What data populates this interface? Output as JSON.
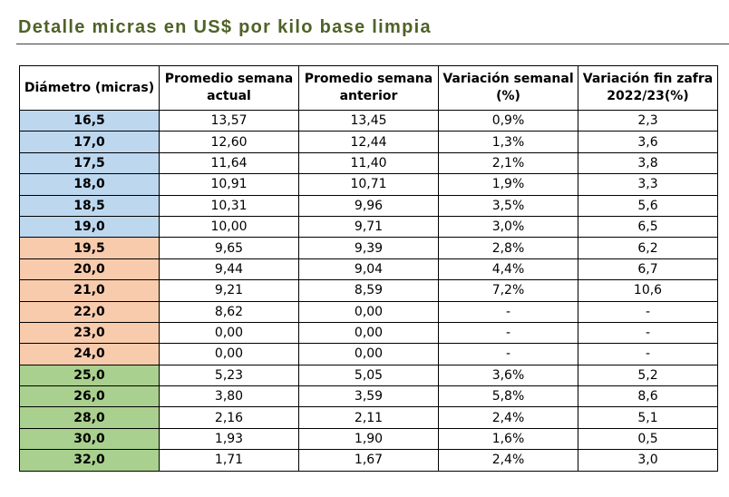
{
  "title": "Detalle micras en US$ por kilo base limpia",
  "colors": {
    "title": "#4f6228",
    "blue": "#bdd7ee",
    "peach": "#f8cbad",
    "green": "#a9d08e"
  },
  "table": {
    "headers": [
      "Diámetro (micras)",
      "Promedio semana actual",
      "Promedio semana anterior",
      "Variación semanal (%)",
      "Variación fin zafra 2022/23(%)"
    ],
    "rows": [
      {
        "diametro": "16,5",
        "actual": "13,57",
        "anterior": "13,45",
        "var_semanal": "0,9%",
        "var_zafra": "2,3",
        "group": "blue"
      },
      {
        "diametro": "17,0",
        "actual": "12,60",
        "anterior": "12,44",
        "var_semanal": "1,3%",
        "var_zafra": "3,6",
        "group": "blue"
      },
      {
        "diametro": "17,5",
        "actual": "11,64",
        "anterior": "11,40",
        "var_semanal": "2,1%",
        "var_zafra": "3,8",
        "group": "blue"
      },
      {
        "diametro": "18,0",
        "actual": "10,91",
        "anterior": "10,71",
        "var_semanal": "1,9%",
        "var_zafra": "3,3",
        "group": "blue"
      },
      {
        "diametro": "18,5",
        "actual": "10,31",
        "anterior": "9,96",
        "var_semanal": "3,5%",
        "var_zafra": "5,6",
        "group": "blue"
      },
      {
        "diametro": "19,0",
        "actual": "10,00",
        "anterior": "9,71",
        "var_semanal": "3,0%",
        "var_zafra": "6,5",
        "group": "blue"
      },
      {
        "diametro": "19,5",
        "actual": "9,65",
        "anterior": "9,39",
        "var_semanal": "2,8%",
        "var_zafra": "6,2",
        "group": "peach"
      },
      {
        "diametro": "20,0",
        "actual": "9,44",
        "anterior": "9,04",
        "var_semanal": "4,4%",
        "var_zafra": "6,7",
        "group": "peach"
      },
      {
        "diametro": "21,0",
        "actual": "9,21",
        "anterior": "8,59",
        "var_semanal": "7,2%",
        "var_zafra": "10,6",
        "group": "peach"
      },
      {
        "diametro": "22,0",
        "actual": "8,62",
        "anterior": "0,00",
        "var_semanal": "-",
        "var_zafra": "-",
        "group": "peach"
      },
      {
        "diametro": "23,0",
        "actual": "0,00",
        "anterior": "0,00",
        "var_semanal": "-",
        "var_zafra": "-",
        "group": "peach"
      },
      {
        "diametro": "24,0",
        "actual": "0,00",
        "anterior": "0,00",
        "var_semanal": "-",
        "var_zafra": "-",
        "group": "peach"
      },
      {
        "diametro": "25,0",
        "actual": "5,23",
        "anterior": "5,05",
        "var_semanal": "3,6%",
        "var_zafra": "5,2",
        "group": "green"
      },
      {
        "diametro": "26,0",
        "actual": "3,80",
        "anterior": "3,59",
        "var_semanal": "5,8%",
        "var_zafra": "8,6",
        "group": "green"
      },
      {
        "diametro": "28,0",
        "actual": "2,16",
        "anterior": "2,11",
        "var_semanal": "2,4%",
        "var_zafra": "5,1",
        "group": "green"
      },
      {
        "diametro": "30,0",
        "actual": "1,93",
        "anterior": "1,90",
        "var_semanal": "1,6%",
        "var_zafra": "0,5",
        "group": "green"
      },
      {
        "diametro": "32,0",
        "actual": "1,71",
        "anterior": "1,67",
        "var_semanal": "2,4%",
        "var_zafra": "3,0",
        "group": "green"
      }
    ]
  }
}
